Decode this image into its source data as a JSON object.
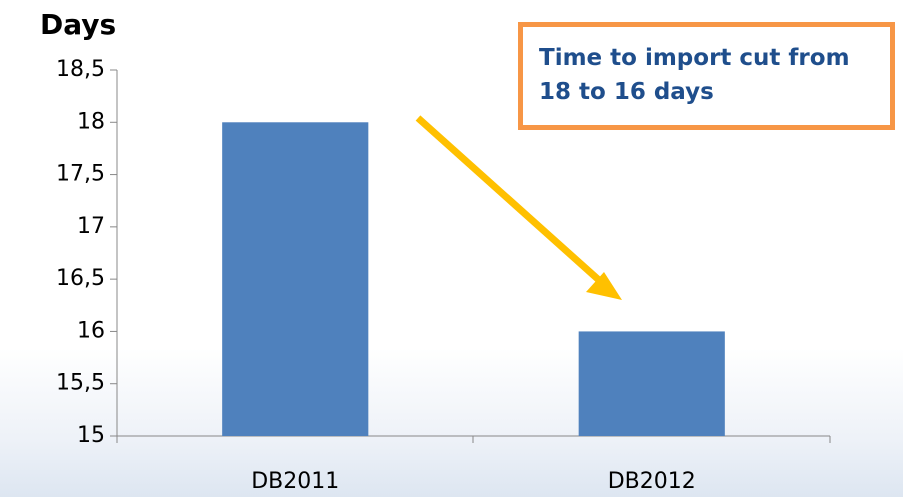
{
  "chart_data": {
    "type": "bar",
    "y_label": "Days",
    "categories": [
      "DB2011",
      "DB2012"
    ],
    "values": [
      18,
      16
    ],
    "color": "#4f81bd",
    "ylim": [
      15,
      18.5
    ],
    "yticks": [
      15,
      {
        "value": 15.5,
        "label": "15,5"
      },
      16,
      {
        "value": 16.5,
        "label": "16,5"
      },
      17,
      {
        "value": 17.5,
        "label": "17,5"
      },
      18,
      {
        "value": 18.5,
        "label": "18,5"
      }
    ],
    "annotation": "Time to import cut from 18 to 16 days"
  }
}
